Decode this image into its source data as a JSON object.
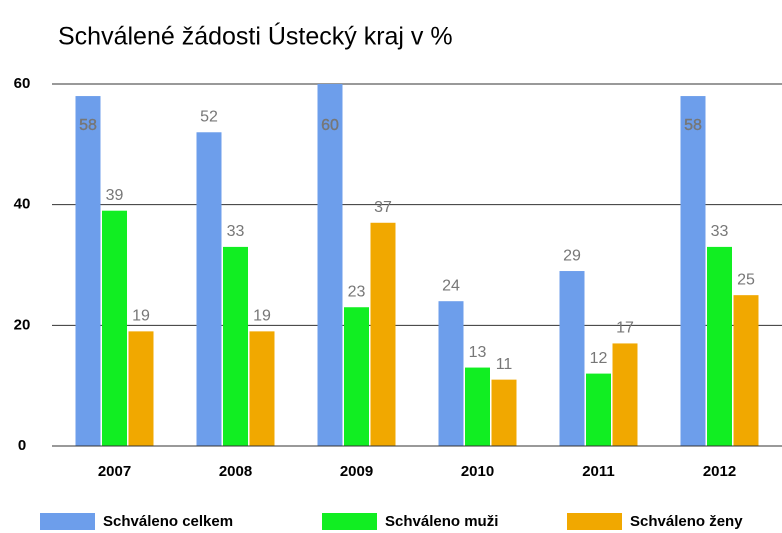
{
  "chart_data": {
    "type": "bar",
    "title": "Schválené žádosti Ústecký kraj v %",
    "categories": [
      "2007",
      "2008",
      "2009",
      "2010",
      "2011",
      "2012"
    ],
    "series": [
      {
        "name": "Schváleno celkem",
        "color": "#6d9eeb",
        "values": [
          58,
          52,
          60,
          24,
          29,
          58
        ]
      },
      {
        "name": "Schváleno muži",
        "color": "#11ee22",
        "values": [
          39,
          33,
          23,
          13,
          12,
          33
        ]
      },
      {
        "name": "Schváleno ženy",
        "color": "#f1a800",
        "values": [
          19,
          19,
          37,
          11,
          17,
          25
        ]
      }
    ],
    "ylim": [
      0,
      60
    ],
    "yticks": [
      0,
      20,
      40,
      60
    ],
    "grid": true,
    "legend": "bottom"
  }
}
